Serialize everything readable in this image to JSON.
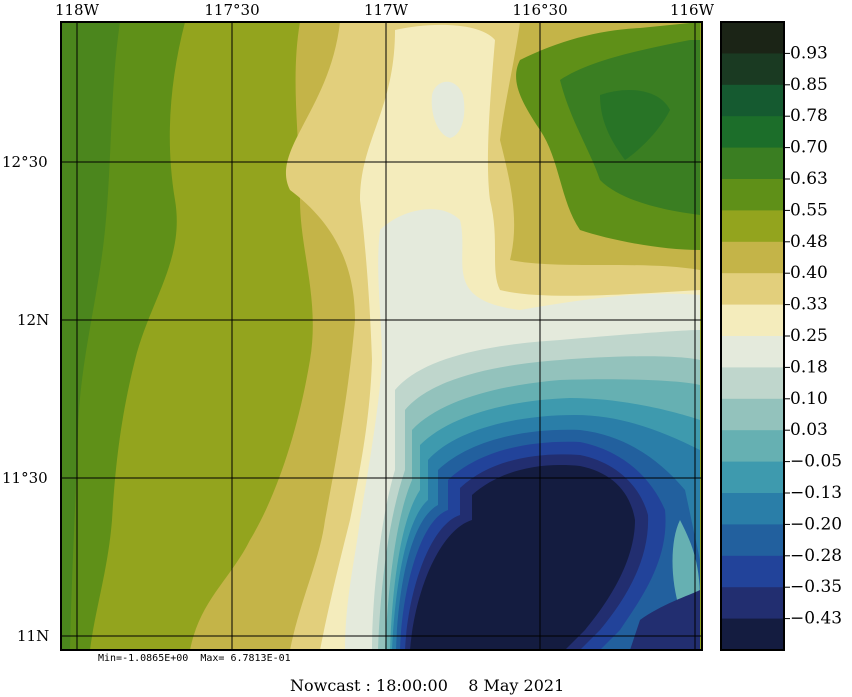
{
  "lon_labels": [
    "118W",
    "117°30",
    "117W",
    "116°30",
    "116W"
  ],
  "lat_labels": [
    "12°30",
    "12N",
    "11°30",
    "11N"
  ],
  "colorbar": {
    "levels": [
      "0.93",
      "0.85",
      "0.78",
      "0.70",
      "0.63",
      "0.55",
      "0.48",
      "0.40",
      "0.33",
      "0.25",
      "0.18",
      "0.10",
      "0.03",
      "−0.05",
      "−0.13",
      "−0.20",
      "−0.28",
      "−0.35",
      "−0.43"
    ],
    "colors": [
      "#1b2416",
      "#1a3a22",
      "#155a30",
      "#1c6e2a",
      "#3a7e22",
      "#5f9018",
      "#93a41e",
      "#c4b448",
      "#e2cf7c",
      "#f4ecbc",
      "#e4eadc",
      "#bfd6cc",
      "#93c2bc",
      "#66b0b2",
      "#3e9aae",
      "#2a7ea8",
      "#22609e",
      "#22439a",
      "#222e70",
      "#141c40"
    ]
  },
  "min_max_text": "Min=-1.0865E+00  Max= 6.7813E-01",
  "footer_text": "Nowcast : 18:00:00    8 May 2021",
  "map_colors": {
    "frame": "#000000",
    "grid": "#000000"
  }
}
